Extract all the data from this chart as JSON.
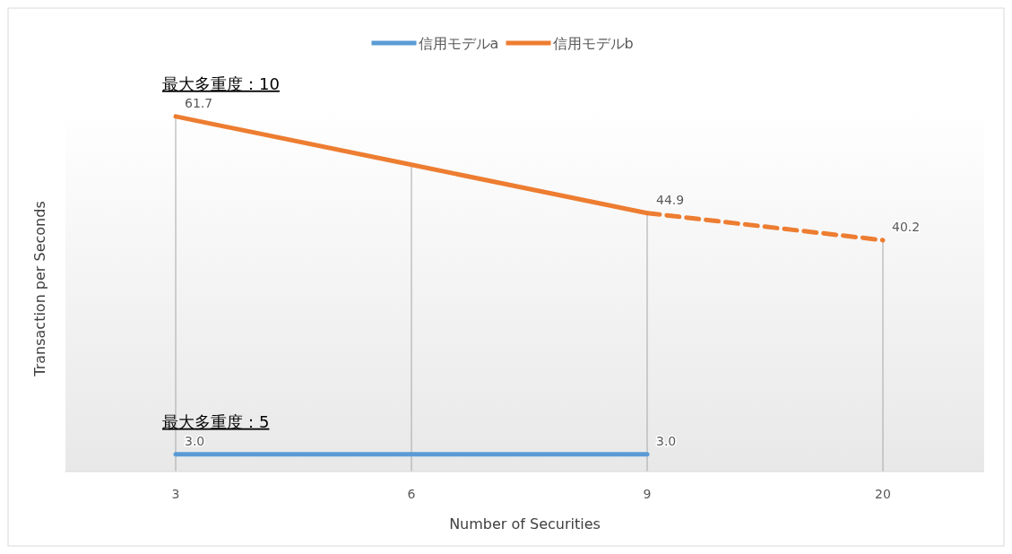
{
  "chart_data": {
    "type": "line",
    "categories": [
      "3",
      "6",
      "9",
      "20"
    ],
    "xlabel": "Number of Securities",
    "ylabel": "Transaction per Seconds",
    "tick_labels": "x",
    "grid": "x",
    "legend": "top",
    "marker": "none",
    "series": [
      {
        "name": "信用モデルa",
        "color": "#5b9bd5",
        "values": [
          3.0,
          3.0,
          3.0,
          null
        ],
        "value_labels": [
          "3.0",
          null,
          "3.0",
          null
        ],
        "line_style": "solid"
      },
      {
        "name": "信用モデルb",
        "color": "#ed7d31",
        "values": [
          61.7,
          53.3,
          44.9,
          null
        ],
        "value_labels": [
          "61.7",
          null,
          "44.9",
          null
        ],
        "line_style": "solid"
      },
      {
        "color": "#ed7d31",
        "values": [
          null,
          null,
          44.9,
          40.2
        ],
        "value_labels": [
          null,
          null,
          null,
          "40.2"
        ],
        "line_style": "dashed"
      }
    ],
    "annotations": [
      {
        "text": "最大多重度：10",
        "x": "3",
        "y": 61.7
      },
      {
        "text": "最大多重度：5",
        "x": "3",
        "y": 3.0
      }
    ]
  }
}
